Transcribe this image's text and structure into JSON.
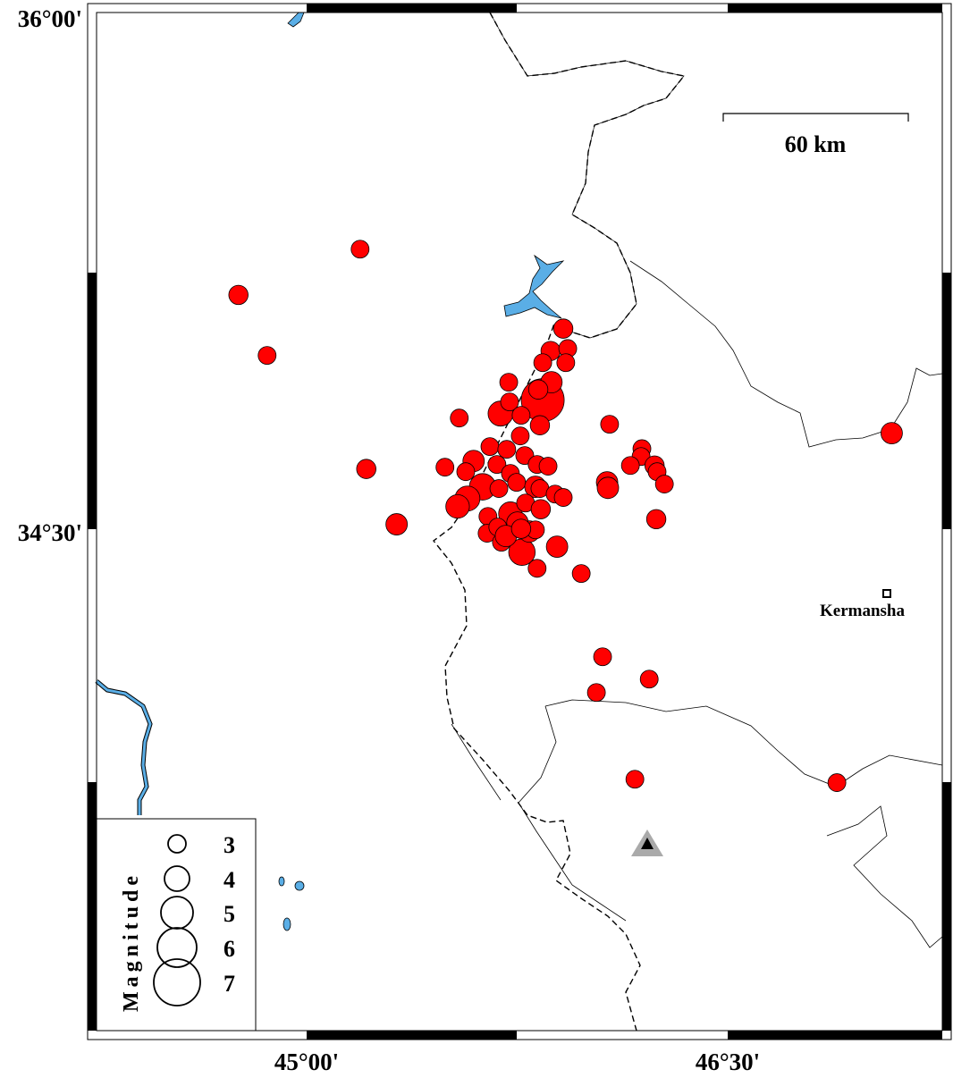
{
  "map": {
    "extent": {
      "lon": [
        44.25,
        47.26
      ],
      "lat": [
        33.04,
        36.0
      ]
    },
    "tick_labels": {
      "lat": [
        {
          "value": 36.0,
          "label": "36°00'"
        },
        {
          "value": 34.5,
          "label": "34°30'"
        }
      ],
      "lon": [
        {
          "value": 45.0,
          "label": "45°00'"
        },
        {
          "value": 46.5,
          "label": "46°30'"
        }
      ]
    },
    "scale_bar": {
      "label": "60 km",
      "km": 60
    },
    "city": {
      "name": "Kermansha",
      "lon": 47.07,
      "lat": 34.3
    },
    "station": {
      "symbol": "triangle",
      "lon": 46.19,
      "lat": 33.59
    },
    "colors": {
      "event": "#ff0000",
      "water": "#5aaee6",
      "station": "#aaaaaa"
    },
    "legend": {
      "title": "Magnitude",
      "magnitudes": [
        "3",
        "4",
        "5",
        "6",
        "7"
      ]
    },
    "events": [
      {
        "lon": 45.188,
        "lat": 35.312,
        "mag": 3.0
      },
      {
        "lon": 44.755,
        "lat": 35.179,
        "mag": 3.2
      },
      {
        "lon": 44.857,
        "lat": 35.003,
        "mag": 3.0
      },
      {
        "lon": 45.21,
        "lat": 34.673,
        "mag": 3.2
      },
      {
        "lon": 45.318,
        "lat": 34.512,
        "mag": 3.5
      },
      {
        "lon": 45.541,
        "lat": 34.821,
        "mag": 3.0
      },
      {
        "lon": 45.911,
        "lat": 35.081,
        "mag": 3.2
      },
      {
        "lon": 45.866,
        "lat": 35.016,
        "mag": 3.2
      },
      {
        "lon": 45.927,
        "lat": 35.023,
        "mag": 3.0
      },
      {
        "lon": 45.838,
        "lat": 34.982,
        "mag": 3.0
      },
      {
        "lon": 45.92,
        "lat": 34.982,
        "mag": 3.0
      },
      {
        "lon": 45.717,
        "lat": 34.925,
        "mag": 3.0
      },
      {
        "lon": 45.838,
        "lat": 34.873,
        "mag": 6.5
      },
      {
        "lon": 45.869,
        "lat": 34.925,
        "mag": 3.5
      },
      {
        "lon": 45.822,
        "lat": 34.904,
        "mag": 3.2
      },
      {
        "lon": 45.688,
        "lat": 34.834,
        "mag": 4.0
      },
      {
        "lon": 45.72,
        "lat": 34.868,
        "mag": 3.0
      },
      {
        "lon": 45.761,
        "lat": 34.829,
        "mag": 3.0
      },
      {
        "lon": 45.828,
        "lat": 34.8,
        "mag": 3.2
      },
      {
        "lon": 45.758,
        "lat": 34.769,
        "mag": 3.0
      },
      {
        "lon": 46.076,
        "lat": 34.803,
        "mag": 3.0
      },
      {
        "lon": 46.191,
        "lat": 34.732,
        "mag": 3.0
      },
      {
        "lon": 46.188,
        "lat": 34.709,
        "mag": 3.0
      },
      {
        "lon": 46.15,
        "lat": 34.683,
        "mag": 3.0
      },
      {
        "lon": 46.236,
        "lat": 34.683,
        "mag": 3.2
      },
      {
        "lon": 46.245,
        "lat": 34.665,
        "mag": 3.0
      },
      {
        "lon": 46.271,
        "lat": 34.629,
        "mag": 3.0
      },
      {
        "lon": 46.067,
        "lat": 34.634,
        "mag": 3.5
      },
      {
        "lon": 46.07,
        "lat": 34.618,
        "mag": 3.5
      },
      {
        "lon": 46.242,
        "lat": 34.527,
        "mag": 3.2
      },
      {
        "lon": 45.49,
        "lat": 34.678,
        "mag": 3.0
      },
      {
        "lon": 45.592,
        "lat": 34.696,
        "mag": 3.5
      },
      {
        "lon": 45.65,
        "lat": 34.738,
        "mag": 3.0
      },
      {
        "lon": 45.71,
        "lat": 34.73,
        "mag": 3.0
      },
      {
        "lon": 45.675,
        "lat": 34.686,
        "mag": 3.0
      },
      {
        "lon": 45.564,
        "lat": 34.665,
        "mag": 3.0
      },
      {
        "lon": 45.723,
        "lat": 34.66,
        "mag": 3.0
      },
      {
        "lon": 45.774,
        "lat": 34.712,
        "mag": 3.0
      },
      {
        "lon": 45.818,
        "lat": 34.686,
        "mag": 3.0
      },
      {
        "lon": 45.857,
        "lat": 34.681,
        "mag": 3.0
      },
      {
        "lon": 45.624,
        "lat": 34.621,
        "mag": 4.2
      },
      {
        "lon": 45.57,
        "lat": 34.587,
        "mag": 4.0
      },
      {
        "lon": 45.535,
        "lat": 34.564,
        "mag": 3.8
      },
      {
        "lon": 45.682,
        "lat": 34.616,
        "mag": 3.0
      },
      {
        "lon": 45.745,
        "lat": 34.634,
        "mag": 3.0
      },
      {
        "lon": 45.812,
        "lat": 34.621,
        "mag": 3.5
      },
      {
        "lon": 45.828,
        "lat": 34.616,
        "mag": 3.0
      },
      {
        "lon": 45.882,
        "lat": 34.6,
        "mag": 3.0
      },
      {
        "lon": 45.911,
        "lat": 34.59,
        "mag": 3.0
      },
      {
        "lon": 45.643,
        "lat": 34.535,
        "mag": 3.0
      },
      {
        "lon": 45.64,
        "lat": 34.486,
        "mag": 3.0
      },
      {
        "lon": 45.691,
        "lat": 34.46,
        "mag": 3.0
      },
      {
        "lon": 45.723,
        "lat": 34.543,
        "mag": 3.8
      },
      {
        "lon": 45.777,
        "lat": 34.574,
        "mag": 3.0
      },
      {
        "lon": 45.764,
        "lat": 34.431,
        "mag": 4.2
      },
      {
        "lon": 45.79,
        "lat": 34.491,
        "mag": 3.5
      },
      {
        "lon": 45.812,
        "lat": 34.496,
        "mag": 3.0
      },
      {
        "lon": 45.748,
        "lat": 34.517,
        "mag": 3.5
      },
      {
        "lon": 45.889,
        "lat": 34.447,
        "mag": 3.5
      },
      {
        "lon": 45.818,
        "lat": 34.384,
        "mag": 3.0
      },
      {
        "lon": 45.975,
        "lat": 34.369,
        "mag": 3.0
      },
      {
        "lon": 45.678,
        "lat": 34.504,
        "mag": 3.0
      },
      {
        "lon": 45.707,
        "lat": 34.478,
        "mag": 3.5
      },
      {
        "lon": 45.761,
        "lat": 34.499,
        "mag": 3.2
      },
      {
        "lon": 45.831,
        "lat": 34.556,
        "mag": 3.2
      },
      {
        "lon": 46.051,
        "lat": 34.127,
        "mag": 3.0
      },
      {
        "lon": 46.029,
        "lat": 34.023,
        "mag": 3.0
      },
      {
        "lon": 46.217,
        "lat": 34.062,
        "mag": 3.0
      },
      {
        "lon": 46.166,
        "lat": 33.771,
        "mag": 3.0
      },
      {
        "lon": 46.885,
        "lat": 33.761,
        "mag": 3.0
      },
      {
        "lon": 47.08,
        "lat": 34.777,
        "mag": 3.5
      }
    ]
  }
}
